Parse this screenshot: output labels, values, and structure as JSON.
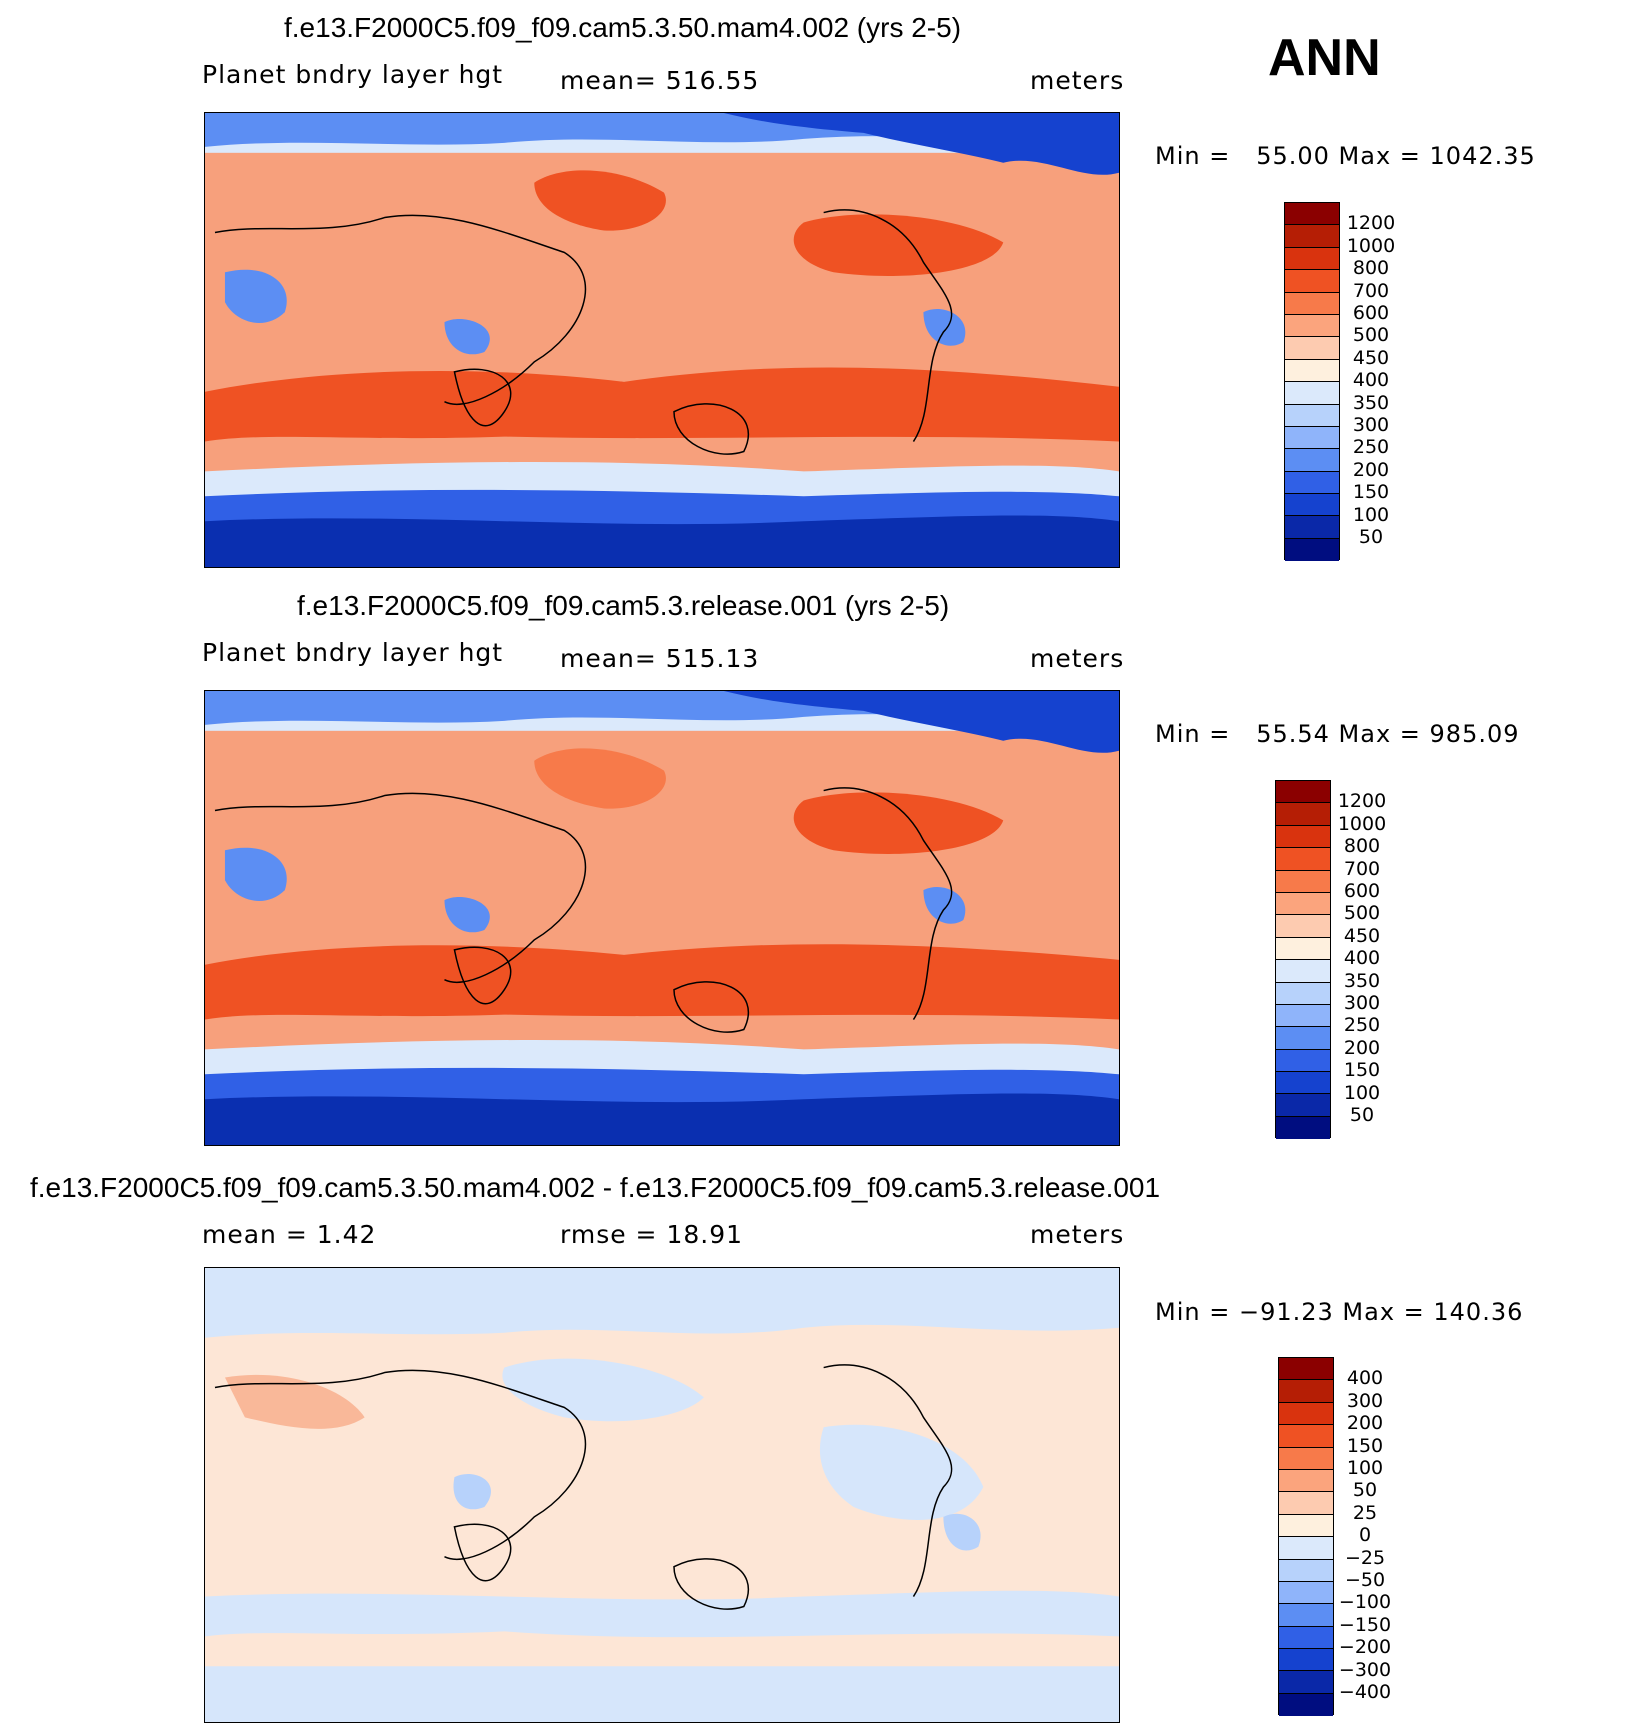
{
  "season": "ANN",
  "panels": [
    {
      "title": "f.e13.F2000C5.f09_f09.cam5.3.50.mam4.002 (yrs 2-5)",
      "variable": "Planet bndry layer hgt",
      "stat": "mean=  516.55",
      "units": "meters",
      "minmax": "Min =   55.00 Max = 1042.35",
      "colorbar_labels": [
        "1200",
        "1000",
        "800",
        "700",
        "600",
        "500",
        "450",
        "400",
        "350",
        "300",
        "250",
        "200",
        "150",
        "100",
        "50"
      ],
      "colorbar_colors": [
        "#8b0000",
        "#b51e05",
        "#d9330e",
        "#ef5223",
        "#f77a4a",
        "#fba47d",
        "#fdcbb0",
        "#fef0de",
        "#dbe9fb",
        "#b7d2fb",
        "#8fb4fa",
        "#5c8ef3",
        "#3060e6",
        "#1542cf",
        "#0a28a8",
        "#000d80"
      ]
    },
    {
      "title": "f.e13.F2000C5.f09_f09.cam5.3.release.001 (yrs 2-5)",
      "variable": "Planet bndry layer hgt",
      "stat": "mean=  515.13",
      "units": "meters",
      "minmax": "Min =   55.54 Max = 985.09",
      "colorbar_labels": [
        "1200",
        "1000",
        "800",
        "700",
        "600",
        "500",
        "450",
        "400",
        "350",
        "300",
        "250",
        "200",
        "150",
        "100",
        "50"
      ],
      "colorbar_colors": [
        "#8b0000",
        "#b51e05",
        "#d9330e",
        "#ef5223",
        "#f77a4a",
        "#fba47d",
        "#fdcbb0",
        "#fef0de",
        "#dbe9fb",
        "#b7d2fb",
        "#8fb4fa",
        "#5c8ef3",
        "#3060e6",
        "#1542cf",
        "#0a28a8",
        "#000d80"
      ]
    },
    {
      "title": "f.e13.F2000C5.f09_f09.cam5.3.50.mam4.002 - f.e13.F2000C5.f09_f09.cam5.3.release.001",
      "variable": "mean =    1.42",
      "stat": "rmse =   18.91",
      "units": "meters",
      "minmax": "Min = −91.23 Max = 140.36",
      "colorbar_labels": [
        "400",
        "300",
        "200",
        "150",
        "100",
        "50",
        "25",
        "0",
        "−25",
        "−50",
        "−100",
        "−150",
        "−200",
        "−300",
        "−400"
      ],
      "colorbar_colors": [
        "#8b0000",
        "#b51e05",
        "#d9330e",
        "#ef5223",
        "#f77a4a",
        "#fba47d",
        "#fdcbb0",
        "#fef0de",
        "#dbe9fb",
        "#b7d2fb",
        "#8fb4fa",
        "#5c8ef3",
        "#3060e6",
        "#1542cf",
        "#0a28a8",
        "#000d80"
      ]
    }
  ],
  "colors": {
    "ocean_mid": "#f7a07c",
    "ocean_warm": "#f06a3e",
    "polar": "#0a2fb0",
    "cool": "#5c8ef3",
    "diff_base": "#fde6d6",
    "diff_neg": "#d6e6fb"
  }
}
